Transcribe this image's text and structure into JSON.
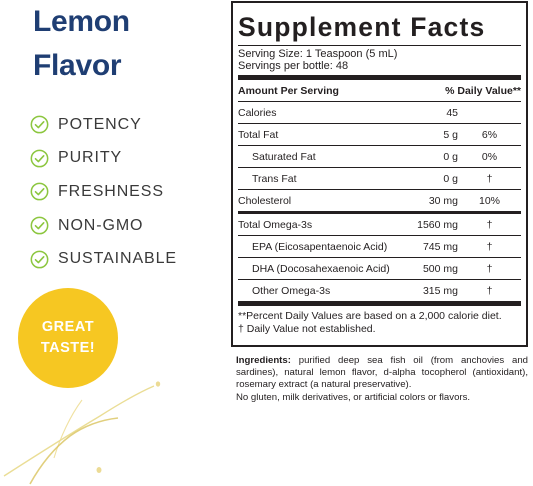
{
  "header": {
    "title_line1": "Lemon",
    "title_line2": "Flavor"
  },
  "features": [
    "POTENCY",
    "PURITY",
    "FRESHNESS",
    "NON-GMO",
    "SUSTAINABLE"
  ],
  "badge": {
    "line1": "GREAT",
    "line2": "TASTE!"
  },
  "colors": {
    "title": "#1f3e73",
    "check": "#8cc63f",
    "badge": "#f6c722",
    "text": "#231f20"
  },
  "facts": {
    "title": "Supplement Facts",
    "serving_size": "Serving Size: 1 Teaspoon (5 mL)",
    "servings_per": "Servings per bottle: 48",
    "header_amount": "Amount Per Serving",
    "header_dv": "% Daily Value**",
    "rows": [
      {
        "name": "Calories",
        "amount": "45",
        "dv": ""
      },
      {
        "name": "Total Fat",
        "amount": "5 g",
        "dv": "6%"
      },
      {
        "name": "Saturated Fat",
        "amount": "0 g",
        "dv": "0%"
      },
      {
        "name": "Trans Fat",
        "amount": "0 g",
        "dv": "†"
      },
      {
        "name": "Cholesterol",
        "amount": "30 mg",
        "dv": "10%"
      },
      {
        "name": "Total Omega-3s",
        "amount": "1560 mg",
        "dv": "†"
      },
      {
        "name": "EPA (Eicosapentaenoic Acid)",
        "amount": "745 mg",
        "dv": "†"
      },
      {
        "name": "DHA (Docosahexaenoic Acid)",
        "amount": "500 mg",
        "dv": "†"
      },
      {
        "name": "Other Omega-3s",
        "amount": "315 mg",
        "dv": "†"
      }
    ],
    "footnote1": "**Percent Daily Values are based on a 2,000 calorie diet.",
    "footnote2": "†  Daily Value not established."
  },
  "ingredients": {
    "label": "Ingredients:",
    "text": " purified deep sea fish oil (from anchovies and sardines), natural lemon flavor, d-alpha tocopherol (antioxidant), rosemary extract (a natural preservative).",
    "extra": "No gluten, milk derivatives, or artificial colors or flavors."
  }
}
